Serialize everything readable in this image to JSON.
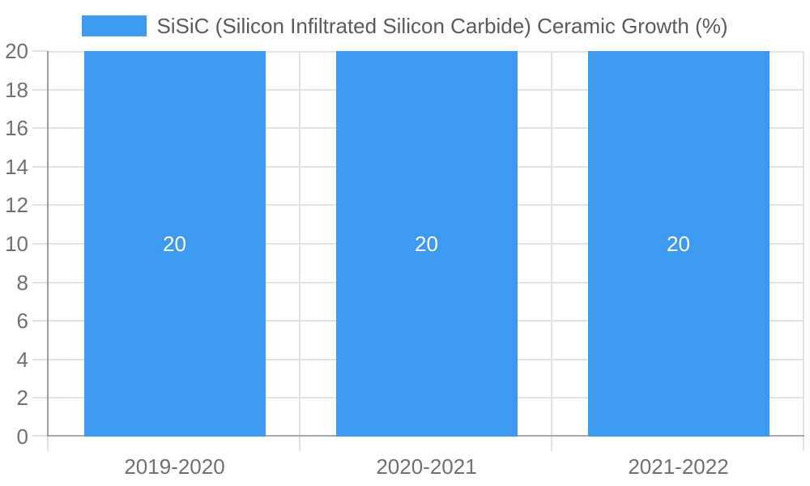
{
  "chart_data": {
    "type": "bar",
    "title": "SiSiC (Silicon Infiltrated Silicon Carbide) Ceramic Growth (%)",
    "categories": [
      "2019-2020",
      "2020-2021",
      "2021-2022"
    ],
    "values": [
      20,
      20,
      20
    ],
    "bar_value_labels": [
      "20",
      "20",
      "20"
    ],
    "xlabel": "",
    "ylabel": "",
    "ylim": [
      0,
      20
    ],
    "y_tick_step": 2,
    "y_tick_labels": [
      "0",
      "2",
      "4",
      "6",
      "8",
      "10",
      "12",
      "14",
      "16",
      "18",
      "20"
    ],
    "legend_position": "top",
    "grid": true,
    "colors": {
      "bar": "#3D9AF0",
      "bar_label": "#FFFFFF",
      "grid_line": "#E3E3E3",
      "axis_line": "#9E9E9E",
      "baseline": "#A8A8A8",
      "tick_label": "#707070",
      "legend_text": "#5A5A5A",
      "background": "#FFFFFF"
    }
  }
}
